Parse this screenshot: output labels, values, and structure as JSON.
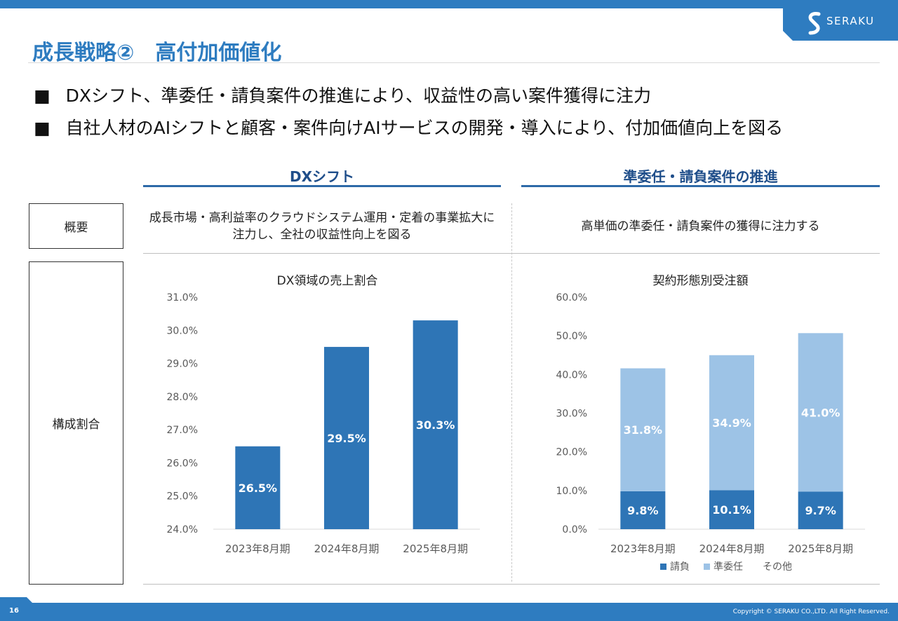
{
  "brand": {
    "name": "SERAKU"
  },
  "title": "成長戦略②　高付加価値化",
  "bullets": [
    "DXシフト、準委任・請負案件の推進により、収益性の高い案件獲得に注力",
    "自社人材のAIシフトと顧客・案件向けAIサービスの開発・導入により、付加価値向上を図る"
  ],
  "bullet_marker": "■",
  "row_labels": {
    "overview": "概要",
    "composition": "構成割合"
  },
  "columns": [
    {
      "heading": "DXシフト",
      "overview_lines": [
        "成長市場・高利益率のクラウドシステム運用・定着の事業拡大に",
        "注力し、全社の収益性向上を図る"
      ]
    },
    {
      "heading": "準委任・請負案件の推進",
      "overview_lines": [
        "高単価の準委任・請負案件の獲得に注力する"
      ]
    }
  ],
  "chart_data": [
    {
      "type": "bar",
      "title": "DX領域の売上割合",
      "categories": [
        "2023年8月期",
        "2024年8月期",
        "2025年8月期"
      ],
      "values": [
        26.5,
        29.5,
        30.3
      ],
      "value_labels": [
        "26.5%",
        "29.5%",
        "30.3%"
      ],
      "ylim": [
        24.0,
        31.0
      ],
      "yticks": [
        "24.0%",
        "25.0%",
        "26.0%",
        "27.0%",
        "28.0%",
        "29.0%",
        "30.0%",
        "31.0%"
      ],
      "ytick_values": [
        24,
        25,
        26,
        27,
        28,
        29,
        30,
        31
      ],
      "xlabel": "",
      "ylabel": "",
      "grid": false,
      "colors": {
        "bar": "#2e75b6"
      }
    },
    {
      "type": "bar",
      "stacked": true,
      "title": "契約形態別受注額",
      "categories": [
        "2023年8月期",
        "2024年8月期",
        "2025年8月期"
      ],
      "series": [
        {
          "name": "請負",
          "values": [
            9.8,
            10.1,
            9.7
          ],
          "labels": [
            "9.8%",
            "10.1%",
            "9.7%"
          ],
          "color": "#2e75b6"
        },
        {
          "name": "準委任",
          "values": [
            31.8,
            34.9,
            41.0
          ],
          "labels": [
            "31.8%",
            "34.9%",
            "41.0%"
          ],
          "color": "#9dc3e6"
        },
        {
          "name": "その他",
          "values": [
            0,
            0,
            0
          ],
          "labels": [
            "",
            "",
            ""
          ],
          "color": "#ffffff"
        }
      ],
      "ylim": [
        0,
        60
      ],
      "yticks": [
        "0.0%",
        "10.0%",
        "20.0%",
        "30.0%",
        "40.0%",
        "50.0%",
        "60.0%"
      ],
      "ytick_values": [
        0,
        10,
        20,
        30,
        40,
        50,
        60
      ],
      "xlabel": "",
      "ylabel": "",
      "grid": false,
      "legend": "bottom"
    }
  ],
  "footer": {
    "page_number": "16",
    "copyright": "Copyright © SERAKU CO.,LTD. All Right Reserved."
  }
}
